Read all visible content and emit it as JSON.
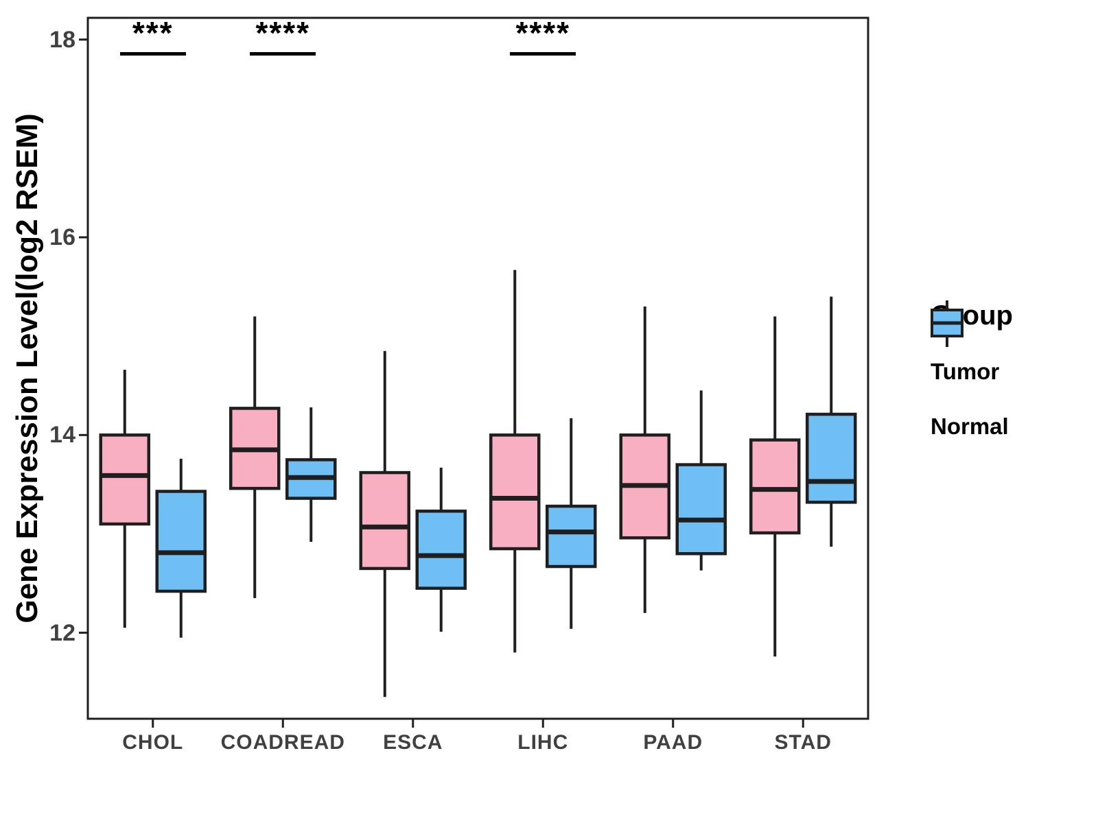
{
  "figure_title": "",
  "legend": {
    "title": "Group",
    "entries": [
      {
        "label": "Tumor",
        "color": "#F9AFC2"
      },
      {
        "label": "Normal",
        "color": "#6FBFF4"
      }
    ]
  },
  "chart_data": {
    "type": "boxplot",
    "title": "",
    "xlabel": "",
    "ylabel": "Gene Expression Level(log2 RSEM)",
    "categories": [
      "CHOL",
      "COADREAD",
      "ESCA",
      "LIHC",
      "PAAD",
      "STAD"
    ],
    "groups": [
      "Tumor",
      "Normal"
    ],
    "colors": {
      "Tumor": "#F9AFC2",
      "Normal": "#6FBFF4"
    },
    "yticks": [
      12,
      14,
      16,
      18
    ],
    "ylim": [
      11.13,
      18.22
    ],
    "grid": false,
    "legend_position": "right",
    "series": [
      {
        "name": "Tumor",
        "stats": [
          {
            "category": "CHOL",
            "min": 12.05,
            "q1": 13.1,
            "median": 13.59,
            "q3": 14.0,
            "max": 14.66
          },
          {
            "category": "COADREAD",
            "min": 12.35,
            "q1": 13.46,
            "median": 13.85,
            "q3": 14.27,
            "max": 15.2
          },
          {
            "category": "ESCA",
            "min": 11.35,
            "q1": 12.65,
            "median": 13.07,
            "q3": 13.62,
            "max": 14.85
          },
          {
            "category": "LIHC",
            "min": 11.8,
            "q1": 12.85,
            "median": 13.36,
            "q3": 14.0,
            "max": 15.67
          },
          {
            "category": "PAAD",
            "min": 12.2,
            "q1": 12.96,
            "median": 13.49,
            "q3": 14.0,
            "max": 15.3
          },
          {
            "category": "STAD",
            "min": 11.76,
            "q1": 13.01,
            "median": 13.45,
            "q3": 13.95,
            "max": 15.2
          }
        ]
      },
      {
        "name": "Normal",
        "stats": [
          {
            "category": "CHOL",
            "min": 11.95,
            "q1": 12.42,
            "median": 12.81,
            "q3": 13.43,
            "max": 13.76
          },
          {
            "category": "COADREAD",
            "min": 12.92,
            "q1": 13.36,
            "median": 13.57,
            "q3": 13.75,
            "max": 14.28
          },
          {
            "category": "ESCA",
            "min": 12.01,
            "q1": 12.45,
            "median": 12.78,
            "q3": 13.23,
            "max": 13.67
          },
          {
            "category": "LIHC",
            "min": 12.04,
            "q1": 12.67,
            "median": 13.02,
            "q3": 13.28,
            "max": 14.17
          },
          {
            "category": "PAAD",
            "min": 12.63,
            "q1": 12.8,
            "median": 13.14,
            "q3": 13.7,
            "max": 14.45
          },
          {
            "category": "STAD",
            "min": 12.87,
            "q1": 13.32,
            "median": 13.53,
            "q3": 14.21,
            "max": 15.4
          }
        ]
      }
    ],
    "annotations": [
      {
        "category": "CHOL",
        "label": "***"
      },
      {
        "category": "COADREAD",
        "label": "****"
      },
      {
        "category": "LIHC",
        "label": "****"
      }
    ]
  }
}
